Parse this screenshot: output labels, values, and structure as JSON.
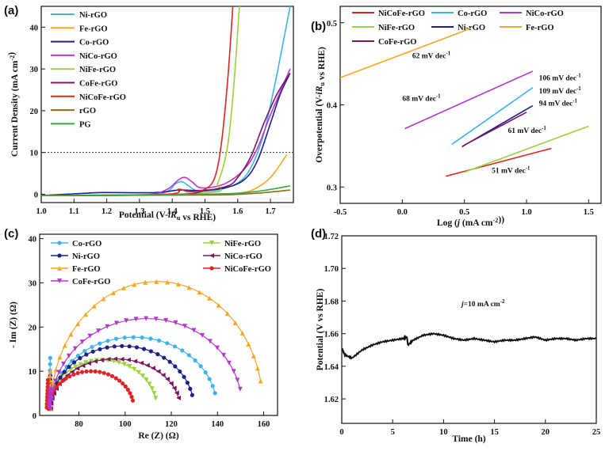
{
  "figure": {
    "panel_labels": [
      "(a)",
      "(b)",
      "(c)",
      "(d)"
    ]
  },
  "chart_data": [
    {
      "panel": "(a)",
      "type": "line",
      "xlabel": "Potential (V-iRu vs RHE)",
      "ylabel": "Current Density (mA cm-2)",
      "xlim": [
        1.0,
        1.77
      ],
      "ylim": [
        -2,
        45
      ],
      "xticks": [
        "1.0",
        "1.1",
        "1.2",
        "1.3",
        "1.4",
        "1.5",
        "1.6",
        "1.7"
      ],
      "yticks": [
        "0",
        "10",
        "20",
        "30",
        "40"
      ],
      "reference_line": {
        "y": 10,
        "style": "dotted"
      },
      "legend_position": "top-left",
      "series": [
        {
          "name": "Ni-rGO",
          "color": "#3eb3ee",
          "points": [
            [
              1.0,
              -0.3
            ],
            [
              1.3,
              -0.2
            ],
            [
              1.38,
              0.5
            ],
            [
              1.41,
              2.5
            ],
            [
              1.43,
              3.0
            ],
            [
              1.45,
              2.0
            ],
            [
              1.48,
              0.8
            ],
            [
              1.55,
              1.2
            ],
            [
              1.62,
              4
            ],
            [
              1.67,
              12
            ],
            [
              1.71,
              25
            ],
            [
              1.76,
              45
            ]
          ]
        },
        {
          "name": "Fe-rGO",
          "color": "#f5a623",
          "points": [
            [
              1.0,
              -0.3
            ],
            [
              1.5,
              -0.1
            ],
            [
              1.6,
              0.2
            ],
            [
              1.65,
              1.2
            ],
            [
              1.7,
              4
            ],
            [
              1.75,
              9.5
            ]
          ]
        },
        {
          "name": "Co-rGO",
          "color": "#1c1f8c",
          "points": [
            [
              1.0,
              -0.3
            ],
            [
              1.15,
              0.3
            ],
            [
              1.2,
              0.4
            ],
            [
              1.35,
              0.4
            ],
            [
              1.42,
              1.0
            ],
            [
              1.48,
              0.9
            ],
            [
              1.56,
              1.5
            ],
            [
              1.62,
              3.5
            ],
            [
              1.66,
              8
            ],
            [
              1.7,
              17
            ],
            [
              1.73,
              24
            ],
            [
              1.76,
              29
            ]
          ]
        },
        {
          "name": "NiCo-rGO",
          "color": "#b537d1",
          "points": [
            [
              1.0,
              -0.3
            ],
            [
              1.3,
              -0.2
            ],
            [
              1.38,
              1.0
            ],
            [
              1.42,
              3.5
            ],
            [
              1.44,
              4.0
            ],
            [
              1.46,
              3.0
            ],
            [
              1.49,
              1.5
            ],
            [
              1.56,
              2.5
            ],
            [
              1.62,
              6
            ],
            [
              1.66,
              11
            ],
            [
              1.7,
              19
            ],
            [
              1.76,
              30
            ]
          ]
        },
        {
          "name": "NiFe-rGO",
          "color": "#9bd33a",
          "points": [
            [
              1.0,
              -0.3
            ],
            [
              1.5,
              0.3
            ],
            [
              1.54,
              3
            ],
            [
              1.57,
              12
            ],
            [
              1.59,
              28
            ],
            [
              1.605,
              45
            ]
          ]
        },
        {
          "name": "CoFe-rGO",
          "color": "#7a1760",
          "points": [
            [
              1.0,
              -0.3
            ],
            [
              1.4,
              -0.1
            ],
            [
              1.5,
              0.8
            ],
            [
              1.57,
              2.0
            ],
            [
              1.6,
              4
            ],
            [
              1.64,
              9
            ],
            [
              1.68,
              17
            ],
            [
              1.72,
              24
            ],
            [
              1.76,
              29
            ]
          ]
        },
        {
          "name": "NiCoFe-rGO",
          "color": "#e02424",
          "points": [
            [
              1.0,
              -0.3
            ],
            [
              1.38,
              0.0
            ],
            [
              1.42,
              1.2
            ],
            [
              1.45,
              0.6
            ],
            [
              1.5,
              1.2
            ],
            [
              1.53,
              4
            ],
            [
              1.55,
              12
            ],
            [
              1.57,
              28
            ],
            [
              1.585,
              45
            ]
          ]
        },
        {
          "name": "rGO",
          "color": "#8b6a19",
          "points": [
            [
              1.0,
              -0.3
            ],
            [
              1.5,
              -0.2
            ],
            [
              1.65,
              0.2
            ],
            [
              1.76,
              1.0
            ]
          ]
        },
        {
          "name": "PG",
          "color": "#3aa845",
          "points": [
            [
              1.0,
              -0.3
            ],
            [
              1.5,
              0.0
            ],
            [
              1.65,
              0.6
            ],
            [
              1.76,
              2.0
            ]
          ]
        }
      ]
    },
    {
      "panel": "(b)",
      "type": "line",
      "xlabel": "Log (j (mA cm-2))",
      "ylabel": "Overpotential (V-iRu vs RHE)",
      "xlim": [
        -0.5,
        1.6
      ],
      "ylim": [
        0.28,
        0.52
      ],
      "xticks": [
        "-0.5",
        "0.0",
        "0.5",
        "1.0",
        "1.5"
      ],
      "yticks": [
        "0.3",
        "0.4",
        "0.5"
      ],
      "legend_position": "top",
      "series": [
        {
          "name": "NiCoFe-rGO",
          "color": "#e02424",
          "points": [
            [
              0.35,
              0.313
            ],
            [
              1.2,
              0.347
            ]
          ]
        },
        {
          "name": "Co-rGO",
          "color": "#3eb3ee",
          "points": [
            [
              0.4,
              0.352
            ],
            [
              1.05,
              0.421
            ]
          ]
        },
        {
          "name": "NiCo-rGO",
          "color": "#b537d1",
          "points": [
            [
              0.02,
              0.371
            ],
            [
              1.05,
              0.441
            ]
          ]
        },
        {
          "name": "NiFe-rGO",
          "color": "#9bd33a",
          "points": [
            [
              0.5,
              0.318
            ],
            [
              1.5,
              0.374
            ]
          ]
        },
        {
          "name": "Ni-rGO",
          "color": "#1c1f8c",
          "points": [
            [
              0.48,
              0.349
            ],
            [
              1.05,
              0.399
            ]
          ]
        },
        {
          "name": "Fe-rGO",
          "color": "#f5a623",
          "points": [
            [
              -0.5,
              0.433
            ],
            [
              0.55,
              0.493
            ]
          ]
        },
        {
          "name": "CoFe-rGO",
          "color": "#7a1760",
          "points": [
            [
              0.5,
              0.351
            ],
            [
              1.0,
              0.391
            ]
          ]
        }
      ],
      "annotations": [
        {
          "text": "62 mV dec-1",
          "x": 0.08,
          "y": 0.457
        },
        {
          "text": "68 mV dec-1",
          "x": 0.0,
          "y": 0.405
        },
        {
          "text": "106 mV dec-1",
          "x": 1.1,
          "y": 0.43
        },
        {
          "text": "109 mV dec-1",
          "x": 1.1,
          "y": 0.414
        },
        {
          "text": "94 mV dec-1",
          "x": 1.1,
          "y": 0.399
        },
        {
          "text": "61 mV dec-1",
          "x": 0.85,
          "y": 0.366
        },
        {
          "text": "51 mV dec-1",
          "x": 0.72,
          "y": 0.317
        }
      ]
    },
    {
      "panel": "(c)",
      "type": "scatter",
      "xlabel": "Re (Z) (Ω)",
      "ylabel": "- Im (Z) (Ω)",
      "xlim": [
        63,
        166
      ],
      "ylim": [
        0,
        41
      ],
      "xticks": [
        "80",
        "100",
        "120",
        "140",
        "160"
      ],
      "yticks": [
        "0",
        "10",
        "20",
        "30",
        "40"
      ],
      "legend_position": "top",
      "series": [
        {
          "name": "Co-rGO",
          "color": "#3eb3ee",
          "marker": "dot",
          "Rs": 67,
          "Rct": 72,
          "peak": 16.2
        },
        {
          "name": "NiFe-rGO",
          "color": "#9bd33a",
          "marker": "tri-down",
          "Rs": 66,
          "Rct": 47,
          "peak": 11.0
        },
        {
          "name": "Ni-rGO",
          "color": "#1c1f8c",
          "marker": "dot",
          "Rs": 67,
          "Rct": 62,
          "peak": 14.2
        },
        {
          "name": "NiCo-rGO",
          "color": "#7a1760",
          "marker": "tri-left",
          "Rs": 67,
          "Rct": 56,
          "peak": 11.3
        },
        {
          "name": "Fe-rGO",
          "color": "#f5a623",
          "marker": "tri-up",
          "Rs": 67,
          "Rct": 92,
          "peak": 28.8
        },
        {
          "name": "NiCoFe-rGO",
          "color": "#e02424",
          "marker": "dot",
          "Rs": 66,
          "Rct": 37,
          "peak": 8.5
        },
        {
          "name": "CoFe-rGO",
          "color": "#b537d1",
          "marker": "tri-down",
          "Rs": 67,
          "Rct": 83,
          "peak": 20.4
        }
      ]
    },
    {
      "panel": "(d)",
      "type": "line",
      "xlabel": "Time (h)",
      "ylabel": "Potential (V vs RHE)",
      "xlim": [
        0,
        25
      ],
      "ylim": [
        1.605,
        1.72
      ],
      "xticks": [
        "0",
        "5",
        "10",
        "15",
        "20",
        "25"
      ],
      "yticks": [
        "1.62",
        "1.64",
        "1.66",
        "1.68",
        "1.70",
        "1.72"
      ],
      "annotation": "j=10 mA cm-2",
      "series": [
        {
          "name": "",
          "color": "#111111",
          "points": [
            [
              0,
              1.651
            ],
            [
              0.3,
              1.647
            ],
            [
              1,
              1.645
            ],
            [
              2,
              1.65
            ],
            [
              3,
              1.653
            ],
            [
              4,
              1.655
            ],
            [
              5,
              1.656
            ],
            [
              6,
              1.657
            ],
            [
              6.4,
              1.658
            ],
            [
              6.5,
              1.653
            ],
            [
              7,
              1.656
            ],
            [
              8,
              1.659
            ],
            [
              9,
              1.66
            ],
            [
              10,
              1.659
            ],
            [
              11,
              1.657
            ],
            [
              12,
              1.656
            ],
            [
              13,
              1.657
            ],
            [
              14,
              1.656
            ],
            [
              15,
              1.655
            ],
            [
              16,
              1.656
            ],
            [
              17,
              1.656
            ],
            [
              18,
              1.657
            ],
            [
              19,
              1.658
            ],
            [
              20,
              1.656
            ],
            [
              21,
              1.657
            ],
            [
              22,
              1.657
            ],
            [
              23,
              1.656
            ],
            [
              24,
              1.657
            ],
            [
              25,
              1.657
            ]
          ]
        }
      ]
    }
  ]
}
